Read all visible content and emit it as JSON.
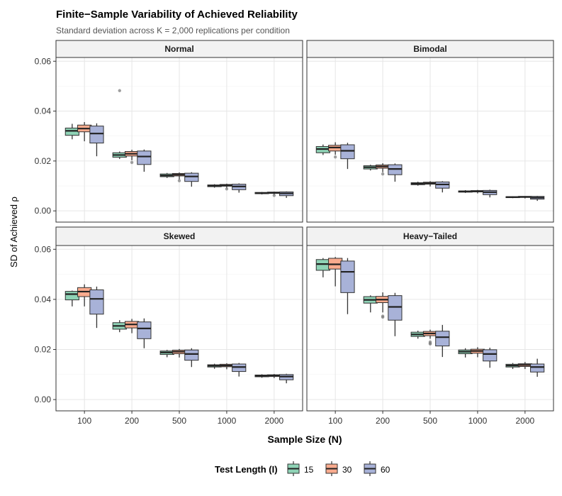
{
  "chart_data": {
    "type": "boxplot",
    "title": "Finite−Sample Variability of Achieved Reliability",
    "subtitle": "Standard deviation across K = 2,000 replications per condition",
    "xlabel": "Sample Size (N)",
    "ylabel": "SD of Achieved ρ",
    "ylim": [
      -0.0045,
      0.0615
    ],
    "y_ticks": [
      "0.00",
      "0.02",
      "0.04",
      "0.06"
    ],
    "y_tick_values": [
      0,
      0.02,
      0.04,
      0.06
    ],
    "categories": [
      "100",
      "200",
      "500",
      "1000",
      "2000"
    ],
    "legend": {
      "title": "Test Length (I)",
      "position": "bottom",
      "items": [
        {
          "label": "15",
          "color": "#8fd3b6"
        },
        {
          "label": "30",
          "color": "#f9ab8e"
        },
        {
          "label": "60",
          "color": "#a8b2d8"
        }
      ]
    },
    "panels": [
      {
        "name": "Normal",
        "groups": [
          {
            "n": "100",
            "boxes": [
              {
                "lw": 0.0287,
                "q1": 0.0303,
                "med": 0.0321,
                "q3": 0.0332,
                "uw": 0.0349,
                "out": []
              },
              {
                "lw": 0.0279,
                "q1": 0.0317,
                "med": 0.033,
                "q3": 0.0344,
                "uw": 0.0356,
                "out": []
              },
              {
                "lw": 0.0219,
                "q1": 0.0272,
                "med": 0.031,
                "q3": 0.034,
                "uw": 0.0351,
                "out": []
              }
            ]
          },
          {
            "n": "200",
            "boxes": [
              {
                "lw": 0.0208,
                "q1": 0.0215,
                "med": 0.0224,
                "q3": 0.0233,
                "uw": 0.0238,
                "out": [
                  0.0482
                ]
              },
              {
                "lw": 0.0203,
                "q1": 0.022,
                "med": 0.0229,
                "q3": 0.0238,
                "uw": 0.0245,
                "out": [
                  0.0194
                ]
              },
              {
                "lw": 0.0157,
                "q1": 0.0186,
                "med": 0.0218,
                "q3": 0.024,
                "uw": 0.0246,
                "out": []
              }
            ]
          },
          {
            "n": "500",
            "boxes": [
              {
                "lw": 0.0132,
                "q1": 0.0137,
                "med": 0.0142,
                "q3": 0.0148,
                "uw": 0.0152,
                "out": []
              },
              {
                "lw": 0.0126,
                "q1": 0.014,
                "med": 0.0145,
                "q3": 0.015,
                "uw": 0.0154,
                "out": [
                  0.0121
                ]
              },
              {
                "lw": 0.0097,
                "q1": 0.0118,
                "med": 0.0138,
                "q3": 0.0151,
                "uw": 0.0155,
                "out": []
              }
            ]
          },
          {
            "n": "1000",
            "boxes": [
              {
                "lw": 0.0093,
                "q1": 0.0097,
                "med": 0.0101,
                "q3": 0.0104,
                "uw": 0.0107,
                "out": []
              },
              {
                "lw": 0.009,
                "q1": 0.0099,
                "med": 0.0102,
                "q3": 0.0106,
                "uw": 0.0109,
                "out": [
                  0.0088
                ]
              },
              {
                "lw": 0.0073,
                "q1": 0.0085,
                "med": 0.0098,
                "q3": 0.0107,
                "uw": 0.011,
                "out": []
              }
            ]
          },
          {
            "n": "2000",
            "boxes": [
              {
                "lw": 0.0066,
                "q1": 0.0069,
                "med": 0.0071,
                "q3": 0.0074,
                "uw": 0.0076,
                "out": []
              },
              {
                "lw": 0.0064,
                "q1": 0.007,
                "med": 0.0073,
                "q3": 0.0075,
                "uw": 0.0077,
                "out": [
                  0.0062
                ]
              },
              {
                "lw": 0.0052,
                "q1": 0.0061,
                "med": 0.007,
                "q3": 0.0076,
                "uw": 0.0078,
                "out": []
              }
            ]
          }
        ]
      },
      {
        "name": "Bimodal",
        "groups": [
          {
            "n": "100",
            "boxes": [
              {
                "lw": 0.0224,
                "q1": 0.0233,
                "med": 0.0248,
                "q3": 0.0258,
                "uw": 0.0266,
                "out": []
              },
              {
                "lw": 0.0225,
                "q1": 0.024,
                "med": 0.0254,
                "q3": 0.0263,
                "uw": 0.0275,
                "out": [
                  0.0216
                ]
              },
              {
                "lw": 0.0168,
                "q1": 0.0209,
                "med": 0.0241,
                "q3": 0.0265,
                "uw": 0.0273,
                "out": []
              }
            ]
          },
          {
            "n": "200",
            "boxes": [
              {
                "lw": 0.0162,
                "q1": 0.0168,
                "med": 0.0175,
                "q3": 0.0181,
                "uw": 0.0185,
                "out": []
              },
              {
                "lw": 0.0155,
                "q1": 0.0171,
                "med": 0.0178,
                "q3": 0.0184,
                "uw": 0.0191,
                "out": [
                  0.0148
                ]
              },
              {
                "lw": 0.0117,
                "q1": 0.0145,
                "med": 0.0168,
                "q3": 0.0185,
                "uw": 0.019,
                "out": []
              }
            ]
          },
          {
            "n": "500",
            "boxes": [
              {
                "lw": 0.0101,
                "q1": 0.0105,
                "med": 0.0109,
                "q3": 0.0113,
                "uw": 0.0117,
                "out": []
              },
              {
                "lw": 0.0098,
                "q1": 0.0107,
                "med": 0.0111,
                "q3": 0.0115,
                "uw": 0.0119,
                "out": []
              },
              {
                "lw": 0.0074,
                "q1": 0.0091,
                "med": 0.0106,
                "q3": 0.0116,
                "uw": 0.0119,
                "out": []
              }
            ]
          },
          {
            "n": "1000",
            "boxes": [
              {
                "lw": 0.0072,
                "q1": 0.0075,
                "med": 0.0078,
                "q3": 0.008,
                "uw": 0.0083,
                "out": []
              },
              {
                "lw": 0.007,
                "q1": 0.0076,
                "med": 0.0079,
                "q3": 0.0081,
                "uw": 0.0084,
                "out": []
              },
              {
                "lw": 0.0054,
                "q1": 0.0065,
                "med": 0.0075,
                "q3": 0.0082,
                "uw": 0.0085,
                "out": []
              }
            ]
          },
          {
            "n": "2000",
            "boxes": [
              {
                "lw": 0.0051,
                "q1": 0.0053,
                "med": 0.0055,
                "q3": 0.0057,
                "uw": 0.0058,
                "out": []
              },
              {
                "lw": 0.005,
                "q1": 0.0054,
                "med": 0.0056,
                "q3": 0.0058,
                "uw": 0.0059,
                "out": []
              },
              {
                "lw": 0.004,
                "q1": 0.0047,
                "med": 0.0053,
                "q3": 0.0058,
                "uw": 0.006,
                "out": []
              }
            ]
          }
        ]
      },
      {
        "name": "Skewed",
        "groups": [
          {
            "n": "100",
            "boxes": [
              {
                "lw": 0.0372,
                "q1": 0.0398,
                "med": 0.0421,
                "q3": 0.0432,
                "uw": 0.0435,
                "out": []
              },
              {
                "lw": 0.0372,
                "q1": 0.0411,
                "med": 0.0431,
                "q3": 0.0447,
                "uw": 0.046,
                "out": []
              },
              {
                "lw": 0.0286,
                "q1": 0.0341,
                "med": 0.0402,
                "q3": 0.0438,
                "uw": 0.0451,
                "out": []
              }
            ]
          },
          {
            "n": "200",
            "boxes": [
              {
                "lw": 0.0269,
                "q1": 0.0281,
                "med": 0.0294,
                "q3": 0.0307,
                "uw": 0.0317,
                "out": []
              },
              {
                "lw": 0.0265,
                "q1": 0.0286,
                "med": 0.03,
                "q3": 0.0312,
                "uw": 0.0322,
                "out": []
              },
              {
                "lw": 0.0205,
                "q1": 0.0243,
                "med": 0.0284,
                "q3": 0.031,
                "uw": 0.0324,
                "out": []
              }
            ]
          },
          {
            "n": "500",
            "boxes": [
              {
                "lw": 0.0169,
                "q1": 0.018,
                "med": 0.0188,
                "q3": 0.0194,
                "uw": 0.0198,
                "out": []
              },
              {
                "lw": 0.0168,
                "q1": 0.0183,
                "med": 0.0191,
                "q3": 0.0197,
                "uw": 0.0202,
                "out": []
              },
              {
                "lw": 0.013,
                "q1": 0.0157,
                "med": 0.0182,
                "q3": 0.0198,
                "uw": 0.0205,
                "out": []
              }
            ]
          },
          {
            "n": "1000",
            "boxes": [
              {
                "lw": 0.0123,
                "q1": 0.013,
                "med": 0.0135,
                "q3": 0.0139,
                "uw": 0.0143,
                "out": []
              },
              {
                "lw": 0.0121,
                "q1": 0.0131,
                "med": 0.0136,
                "q3": 0.0141,
                "uw": 0.0145,
                "out": []
              },
              {
                "lw": 0.0092,
                "q1": 0.0112,
                "med": 0.013,
                "q3": 0.0142,
                "uw": 0.0146,
                "out": []
              }
            ]
          },
          {
            "n": "2000",
            "boxes": [
              {
                "lw": 0.0087,
                "q1": 0.0091,
                "med": 0.0095,
                "q3": 0.0098,
                "uw": 0.0101,
                "out": []
              },
              {
                "lw": 0.0086,
                "q1": 0.0092,
                "med": 0.0096,
                "q3": 0.0099,
                "uw": 0.0102,
                "out": []
              },
              {
                "lw": 0.0065,
                "q1": 0.0079,
                "med": 0.0092,
                "q3": 0.01,
                "uw": 0.0103,
                "out": []
              }
            ]
          }
        ]
      },
      {
        "name": "Heavy−Tailed",
        "groups": [
          {
            "n": "100",
            "boxes": [
              {
                "lw": 0.0488,
                "q1": 0.0516,
                "med": 0.0541,
                "q3": 0.0559,
                "uw": 0.0565,
                "out": []
              },
              {
                "lw": 0.0452,
                "q1": 0.0521,
                "med": 0.054,
                "q3": 0.0564,
                "uw": 0.0569,
                "out": []
              },
              {
                "lw": 0.0341,
                "q1": 0.0427,
                "med": 0.051,
                "q3": 0.0553,
                "uw": 0.0565,
                "out": []
              }
            ]
          },
          {
            "n": "200",
            "boxes": [
              {
                "lw": 0.0348,
                "q1": 0.0385,
                "med": 0.0398,
                "q3": 0.0411,
                "uw": 0.0416,
                "out": []
              },
              {
                "lw": 0.0348,
                "q1": 0.0387,
                "med": 0.0399,
                "q3": 0.0412,
                "uw": 0.0428,
                "out": [
                  0.0333,
                  0.0329
                ]
              },
              {
                "lw": 0.0253,
                "q1": 0.0317,
                "med": 0.037,
                "q3": 0.0415,
                "uw": 0.0426,
                "out": []
              }
            ]
          },
          {
            "n": "500",
            "boxes": [
              {
                "lw": 0.0243,
                "q1": 0.0252,
                "med": 0.026,
                "q3": 0.0269,
                "uw": 0.0275,
                "out": []
              },
              {
                "lw": 0.0243,
                "q1": 0.0255,
                "med": 0.0264,
                "q3": 0.0272,
                "uw": 0.0279,
                "out": [
                  0.023,
                  0.0225,
                  0.0222
                ]
              },
              {
                "lw": 0.017,
                "q1": 0.0214,
                "med": 0.0249,
                "q3": 0.0273,
                "uw": 0.0298,
                "out": []
              }
            ]
          },
          {
            "n": "1000",
            "boxes": [
              {
                "lw": 0.0168,
                "q1": 0.0183,
                "med": 0.0191,
                "q3": 0.0198,
                "uw": 0.0205,
                "out": []
              },
              {
                "lw": 0.0169,
                "q1": 0.0185,
                "med": 0.0194,
                "q3": 0.0201,
                "uw": 0.0209,
                "out": []
              },
              {
                "lw": 0.0127,
                "q1": 0.0154,
                "med": 0.0182,
                "q3": 0.0199,
                "uw": 0.0207,
                "out": []
              }
            ]
          },
          {
            "n": "2000",
            "boxes": [
              {
                "lw": 0.0122,
                "q1": 0.013,
                "med": 0.0136,
                "q3": 0.0141,
                "uw": 0.0146,
                "out": []
              },
              {
                "lw": 0.0122,
                "q1": 0.0132,
                "med": 0.0138,
                "q3": 0.0143,
                "uw": 0.015,
                "out": []
              },
              {
                "lw": 0.0091,
                "q1": 0.011,
                "med": 0.013,
                "q3": 0.0142,
                "uw": 0.0163,
                "out": []
              }
            ]
          }
        ]
      }
    ]
  }
}
